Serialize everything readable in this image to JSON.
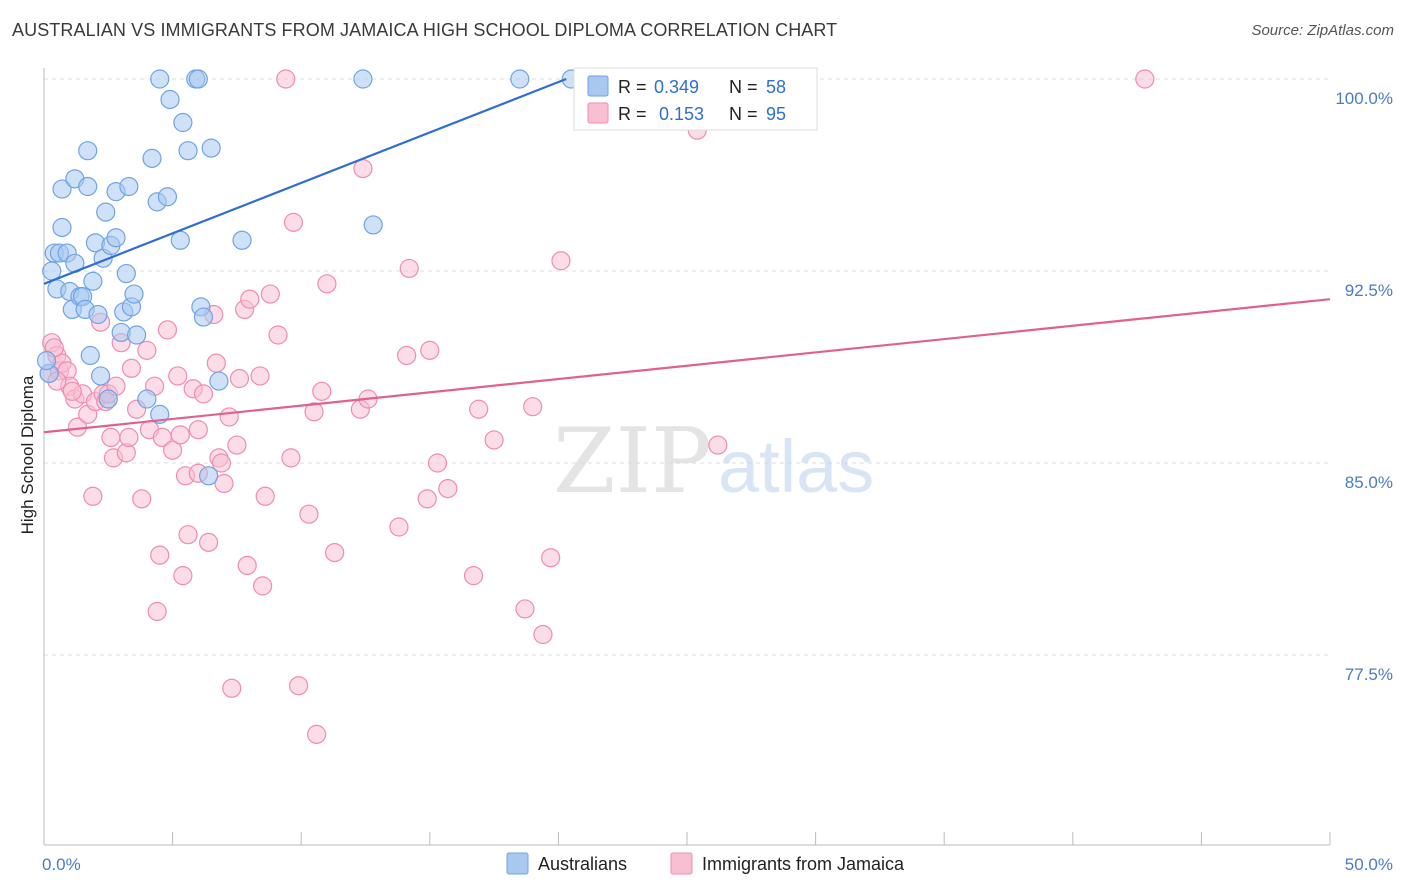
{
  "title": "AUSTRALIAN VS IMMIGRANTS FROM JAMAICA HIGH SCHOOL DIPLOMA CORRELATION CHART",
  "source": "Source: ZipAtlas.com",
  "watermark": {
    "zip": "ZIP",
    "atlas": "atlas"
  },
  "legend": {
    "r_label": "R =",
    "n_label": "N =",
    "rows": [
      {
        "r": "0.349",
        "n": "58"
      },
      {
        "r": "0.153",
        "n": "95"
      }
    ]
  },
  "chart_data": {
    "type": "scatter",
    "title": "AUSTRALIAN VS IMMIGRANTS FROM JAMAICA HIGH SCHOOL DIPLOMA CORRELATION CHART",
    "xlabel": "",
    "ylabel": "High School Diploma",
    "xlim": [
      0,
      50
    ],
    "ylim": [
      71.0,
      101.0
    ],
    "x_tick_labels": [
      "0.0%",
      "50.0%"
    ],
    "y_ticks": [
      {
        "value": 100.0,
        "label": "100.0%"
      },
      {
        "value": 92.5,
        "label": "92.5%"
      },
      {
        "value": 85.0,
        "label": "85.0%"
      },
      {
        "value": 77.5,
        "label": "77.5%"
      }
    ],
    "series": [
      {
        "name": "Australians",
        "color": "#6fa3e6",
        "fill": "#a8c8f0",
        "trend": {
          "x0": 0.0,
          "y0": 92.0,
          "x1": 20.3,
          "y1": 100.0,
          "color": "#2e6fd0"
        },
        "points": [
          [
            0.3,
            92.5
          ],
          [
            0.5,
            91.8
          ],
          [
            0.4,
            93.2
          ],
          [
            0.6,
            93.2
          ],
          [
            0.7,
            94.2
          ],
          [
            0.7,
            95.7
          ],
          [
            0.9,
            93.2
          ],
          [
            1.0,
            91.7
          ],
          [
            1.1,
            91.0
          ],
          [
            1.2,
            92.8
          ],
          [
            1.2,
            96.1
          ],
          [
            1.4,
            91.5
          ],
          [
            1.5,
            91.5
          ],
          [
            1.6,
            91.0
          ],
          [
            1.7,
            97.2
          ],
          [
            1.7,
            95.8
          ],
          [
            1.8,
            89.2
          ],
          [
            1.9,
            92.1
          ],
          [
            2.0,
            93.6
          ],
          [
            2.1,
            90.8
          ],
          [
            2.2,
            88.4
          ],
          [
            2.3,
            93.0
          ],
          [
            2.4,
            94.8
          ],
          [
            2.5,
            87.5
          ],
          [
            2.6,
            93.5
          ],
          [
            2.8,
            93.8
          ],
          [
            2.8,
            95.6
          ],
          [
            3.0,
            90.1
          ],
          [
            3.1,
            90.9
          ],
          [
            3.2,
            92.4
          ],
          [
            3.3,
            95.8
          ],
          [
            3.4,
            91.1
          ],
          [
            3.5,
            91.6
          ],
          [
            3.6,
            90.0
          ],
          [
            4.0,
            87.5
          ],
          [
            4.2,
            96.9
          ],
          [
            4.4,
            95.2
          ],
          [
            4.5,
            86.9
          ],
          [
            4.5,
            100.0
          ],
          [
            4.8,
            95.4
          ],
          [
            4.9,
            99.2
          ],
          [
            5.3,
            93.7
          ],
          [
            5.4,
            98.3
          ],
          [
            5.6,
            97.2
          ],
          [
            5.9,
            100.0
          ],
          [
            6.0,
            100.0
          ],
          [
            6.1,
            91.1
          ],
          [
            6.2,
            90.7
          ],
          [
            6.4,
            84.5
          ],
          [
            6.5,
            97.3
          ],
          [
            6.8,
            88.2
          ],
          [
            7.7,
            93.7
          ],
          [
            12.4,
            100.0
          ],
          [
            12.8,
            94.3
          ],
          [
            18.5,
            100.0
          ],
          [
            20.5,
            100.0
          ],
          [
            0.2,
            88.5
          ],
          [
            0.1,
            89.0
          ]
        ]
      },
      {
        "name": "Immigrants from Jamaica",
        "color": "#f08cb0",
        "fill": "#f8bfd3",
        "trend": {
          "x0": 0.0,
          "y0": 86.2,
          "x1": 50.0,
          "y1": 91.4,
          "color": "#e0608f"
        },
        "points": [
          [
            0.2,
            88.5
          ],
          [
            0.3,
            89.7
          ],
          [
            0.5,
            89.2
          ],
          [
            0.6,
            88.6
          ],
          [
            0.7,
            88.9
          ],
          [
            0.9,
            88.6
          ],
          [
            1.0,
            88.0
          ],
          [
            1.2,
            87.5
          ],
          [
            1.3,
            86.4
          ],
          [
            1.5,
            87.7
          ],
          [
            1.7,
            86.9
          ],
          [
            1.9,
            83.7
          ],
          [
            2.0,
            87.4
          ],
          [
            2.2,
            90.5
          ],
          [
            2.3,
            87.7
          ],
          [
            2.4,
            87.4
          ],
          [
            2.5,
            87.7
          ],
          [
            2.7,
            85.2
          ],
          [
            2.8,
            88.0
          ],
          [
            3.0,
            89.7
          ],
          [
            3.2,
            85.4
          ],
          [
            3.3,
            86.0
          ],
          [
            3.4,
            88.7
          ],
          [
            3.6,
            87.1
          ],
          [
            3.8,
            83.6
          ],
          [
            4.0,
            89.4
          ],
          [
            4.1,
            86.3
          ],
          [
            4.3,
            88.0
          ],
          [
            4.4,
            79.2
          ],
          [
            4.5,
            81.4
          ],
          [
            4.6,
            86.0
          ],
          [
            4.8,
            90.2
          ],
          [
            5.0,
            85.5
          ],
          [
            5.2,
            88.4
          ],
          [
            5.3,
            86.1
          ],
          [
            5.4,
            80.6
          ],
          [
            5.5,
            84.5
          ],
          [
            5.6,
            82.2
          ],
          [
            5.8,
            87.9
          ],
          [
            6.0,
            84.6
          ],
          [
            6.0,
            86.3
          ],
          [
            6.2,
            87.7
          ],
          [
            6.4,
            81.9
          ],
          [
            6.6,
            90.8
          ],
          [
            6.7,
            88.9
          ],
          [
            6.8,
            85.2
          ],
          [
            7.0,
            84.2
          ],
          [
            7.2,
            86.8
          ],
          [
            7.3,
            76.2
          ],
          [
            7.5,
            85.7
          ],
          [
            7.6,
            88.3
          ],
          [
            7.8,
            91.0
          ],
          [
            7.9,
            81.0
          ],
          [
            8.0,
            91.4
          ],
          [
            8.4,
            88.4
          ],
          [
            8.5,
            80.2
          ],
          [
            8.6,
            83.7
          ],
          [
            8.8,
            91.6
          ],
          [
            9.1,
            90.0
          ],
          [
            9.4,
            100.0
          ],
          [
            9.6,
            85.2
          ],
          [
            9.7,
            94.4
          ],
          [
            9.9,
            76.3
          ],
          [
            10.3,
            83.0
          ],
          [
            10.5,
            87.0
          ],
          [
            10.6,
            74.4
          ],
          [
            10.8,
            87.8
          ],
          [
            11.0,
            92.0
          ],
          [
            11.3,
            81.5
          ],
          [
            12.3,
            87.1
          ],
          [
            12.4,
            96.5
          ],
          [
            12.6,
            87.5
          ],
          [
            13.8,
            82.5
          ],
          [
            14.1,
            89.2
          ],
          [
            14.2,
            92.6
          ],
          [
            14.9,
            83.6
          ],
          [
            15.0,
            89.4
          ],
          [
            15.3,
            85.0
          ],
          [
            15.7,
            84.0
          ],
          [
            16.7,
            80.6
          ],
          [
            16.9,
            87.1
          ],
          [
            17.5,
            85.9
          ],
          [
            18.7,
            79.3
          ],
          [
            19.0,
            87.2
          ],
          [
            19.4,
            78.3
          ],
          [
            19.7,
            81.3
          ],
          [
            20.1,
            92.9
          ],
          [
            25.4,
            98.0
          ],
          [
            26.2,
            85.7
          ],
          [
            42.8,
            100.0
          ],
          [
            0.4,
            89.5
          ],
          [
            0.5,
            88.2
          ],
          [
            1.1,
            87.8
          ],
          [
            2.6,
            86.0
          ],
          [
            6.9,
            85.0
          ]
        ]
      }
    ]
  },
  "bottom_legend": [
    "Australians",
    "Immigrants from Jamaica"
  ]
}
